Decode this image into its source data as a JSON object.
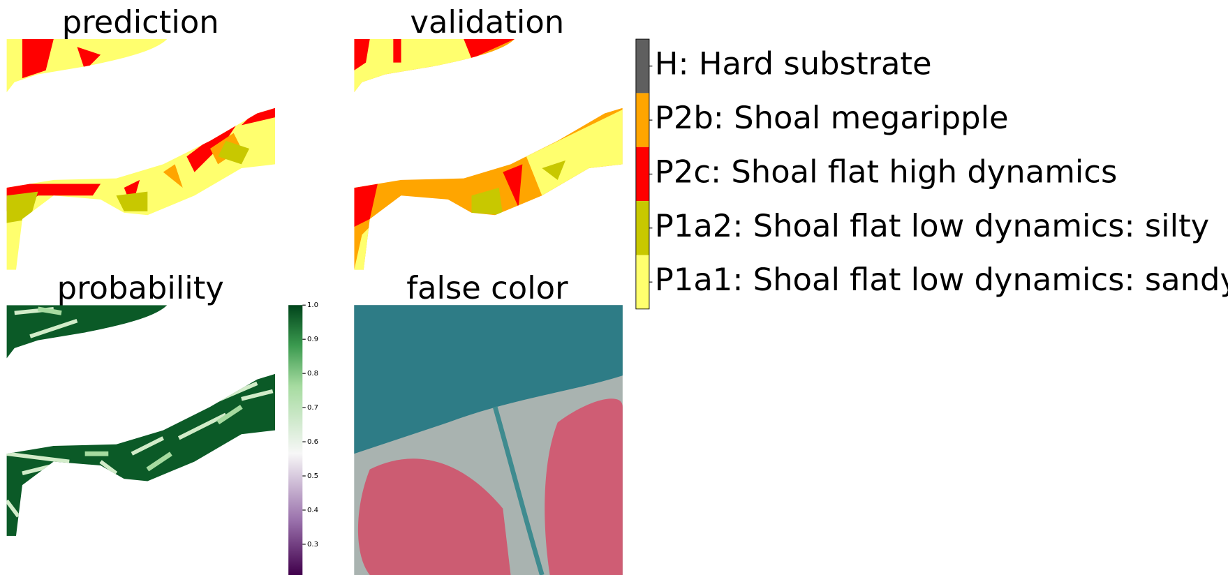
{
  "panels": {
    "prediction": {
      "title": "prediction"
    },
    "validation": {
      "title": "validation"
    },
    "probability": {
      "title": "probability"
    },
    "false_color": {
      "title": "false color"
    }
  },
  "classes": [
    {
      "label": "H: Hard substrate",
      "color": "#5f5f5f"
    },
    {
      "label": "P2b: Shoal megaripple",
      "color": "#ffa500"
    },
    {
      "label": "P2c: Shoal flat high dynamics",
      "color": "#ff0000"
    },
    {
      "label": "P1a2: Shoal flat low dynamics: silty",
      "color": "#c8c800"
    },
    {
      "label": "P1a1: Shoal flat low dynamics: sandy",
      "color": "#ffff6e"
    }
  ],
  "probability_colorbar": {
    "lim": [
      0.21,
      1.0
    ],
    "ticks": [
      0.3,
      0.4,
      0.5,
      0.6,
      0.7,
      0.8,
      0.9,
      {
        "value": 1.0,
        "label": "1.0"
      }
    ]
  }
}
